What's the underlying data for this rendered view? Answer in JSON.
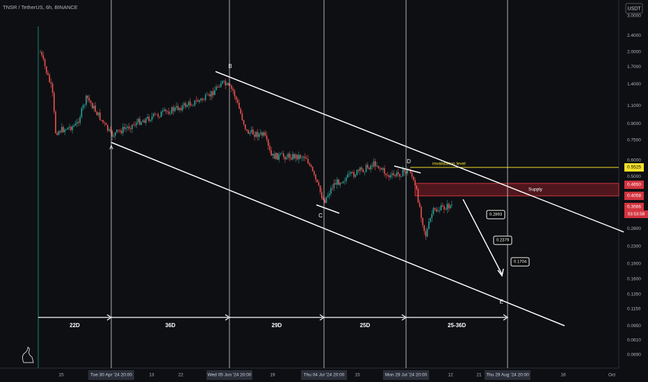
{
  "header": {
    "title": "TNSR / TetherUS, 6h, BINANCE",
    "currency": "USDT"
  },
  "price_axis": [
    "3.0000",
    "2.4000",
    "2.0000",
    "1.7000",
    "1.4000",
    "1.1000",
    "0.9000",
    "0.7500",
    "0.6000",
    "0.5000",
    "0.2800",
    "0.2300",
    "0.1900",
    "0.1600",
    "0.1350",
    "0.1150",
    "0.0950",
    "0.0810",
    "0.0690"
  ],
  "price_tags": {
    "invalidation": "0.5525",
    "supply_top": "0.4650",
    "supply_bottom": "0.4058",
    "current": "0.3566",
    "countdown": "03:53:58"
  },
  "time_axis": [
    "15",
    "Tue 30 Apr '24  20:00",
    "13",
    "22",
    "Wed 05 Jun '24  20:00",
    "19",
    "Thu 04 Jul '24  20:00",
    "15",
    "Mon 29 Jul '24  20:00",
    "12",
    "21",
    "Thu 29 Aug '24  20:00",
    "16",
    "Oct"
  ],
  "points": [
    "A",
    "B",
    "C",
    "D",
    "E"
  ],
  "durations": [
    "22D",
    "36D",
    "29D",
    "25D",
    "25-36D"
  ],
  "targets": [
    "0.2893",
    "0.2379",
    "0.1704"
  ],
  "annotations": {
    "invalidation": "invalidation level",
    "supply": "Supply"
  }
}
